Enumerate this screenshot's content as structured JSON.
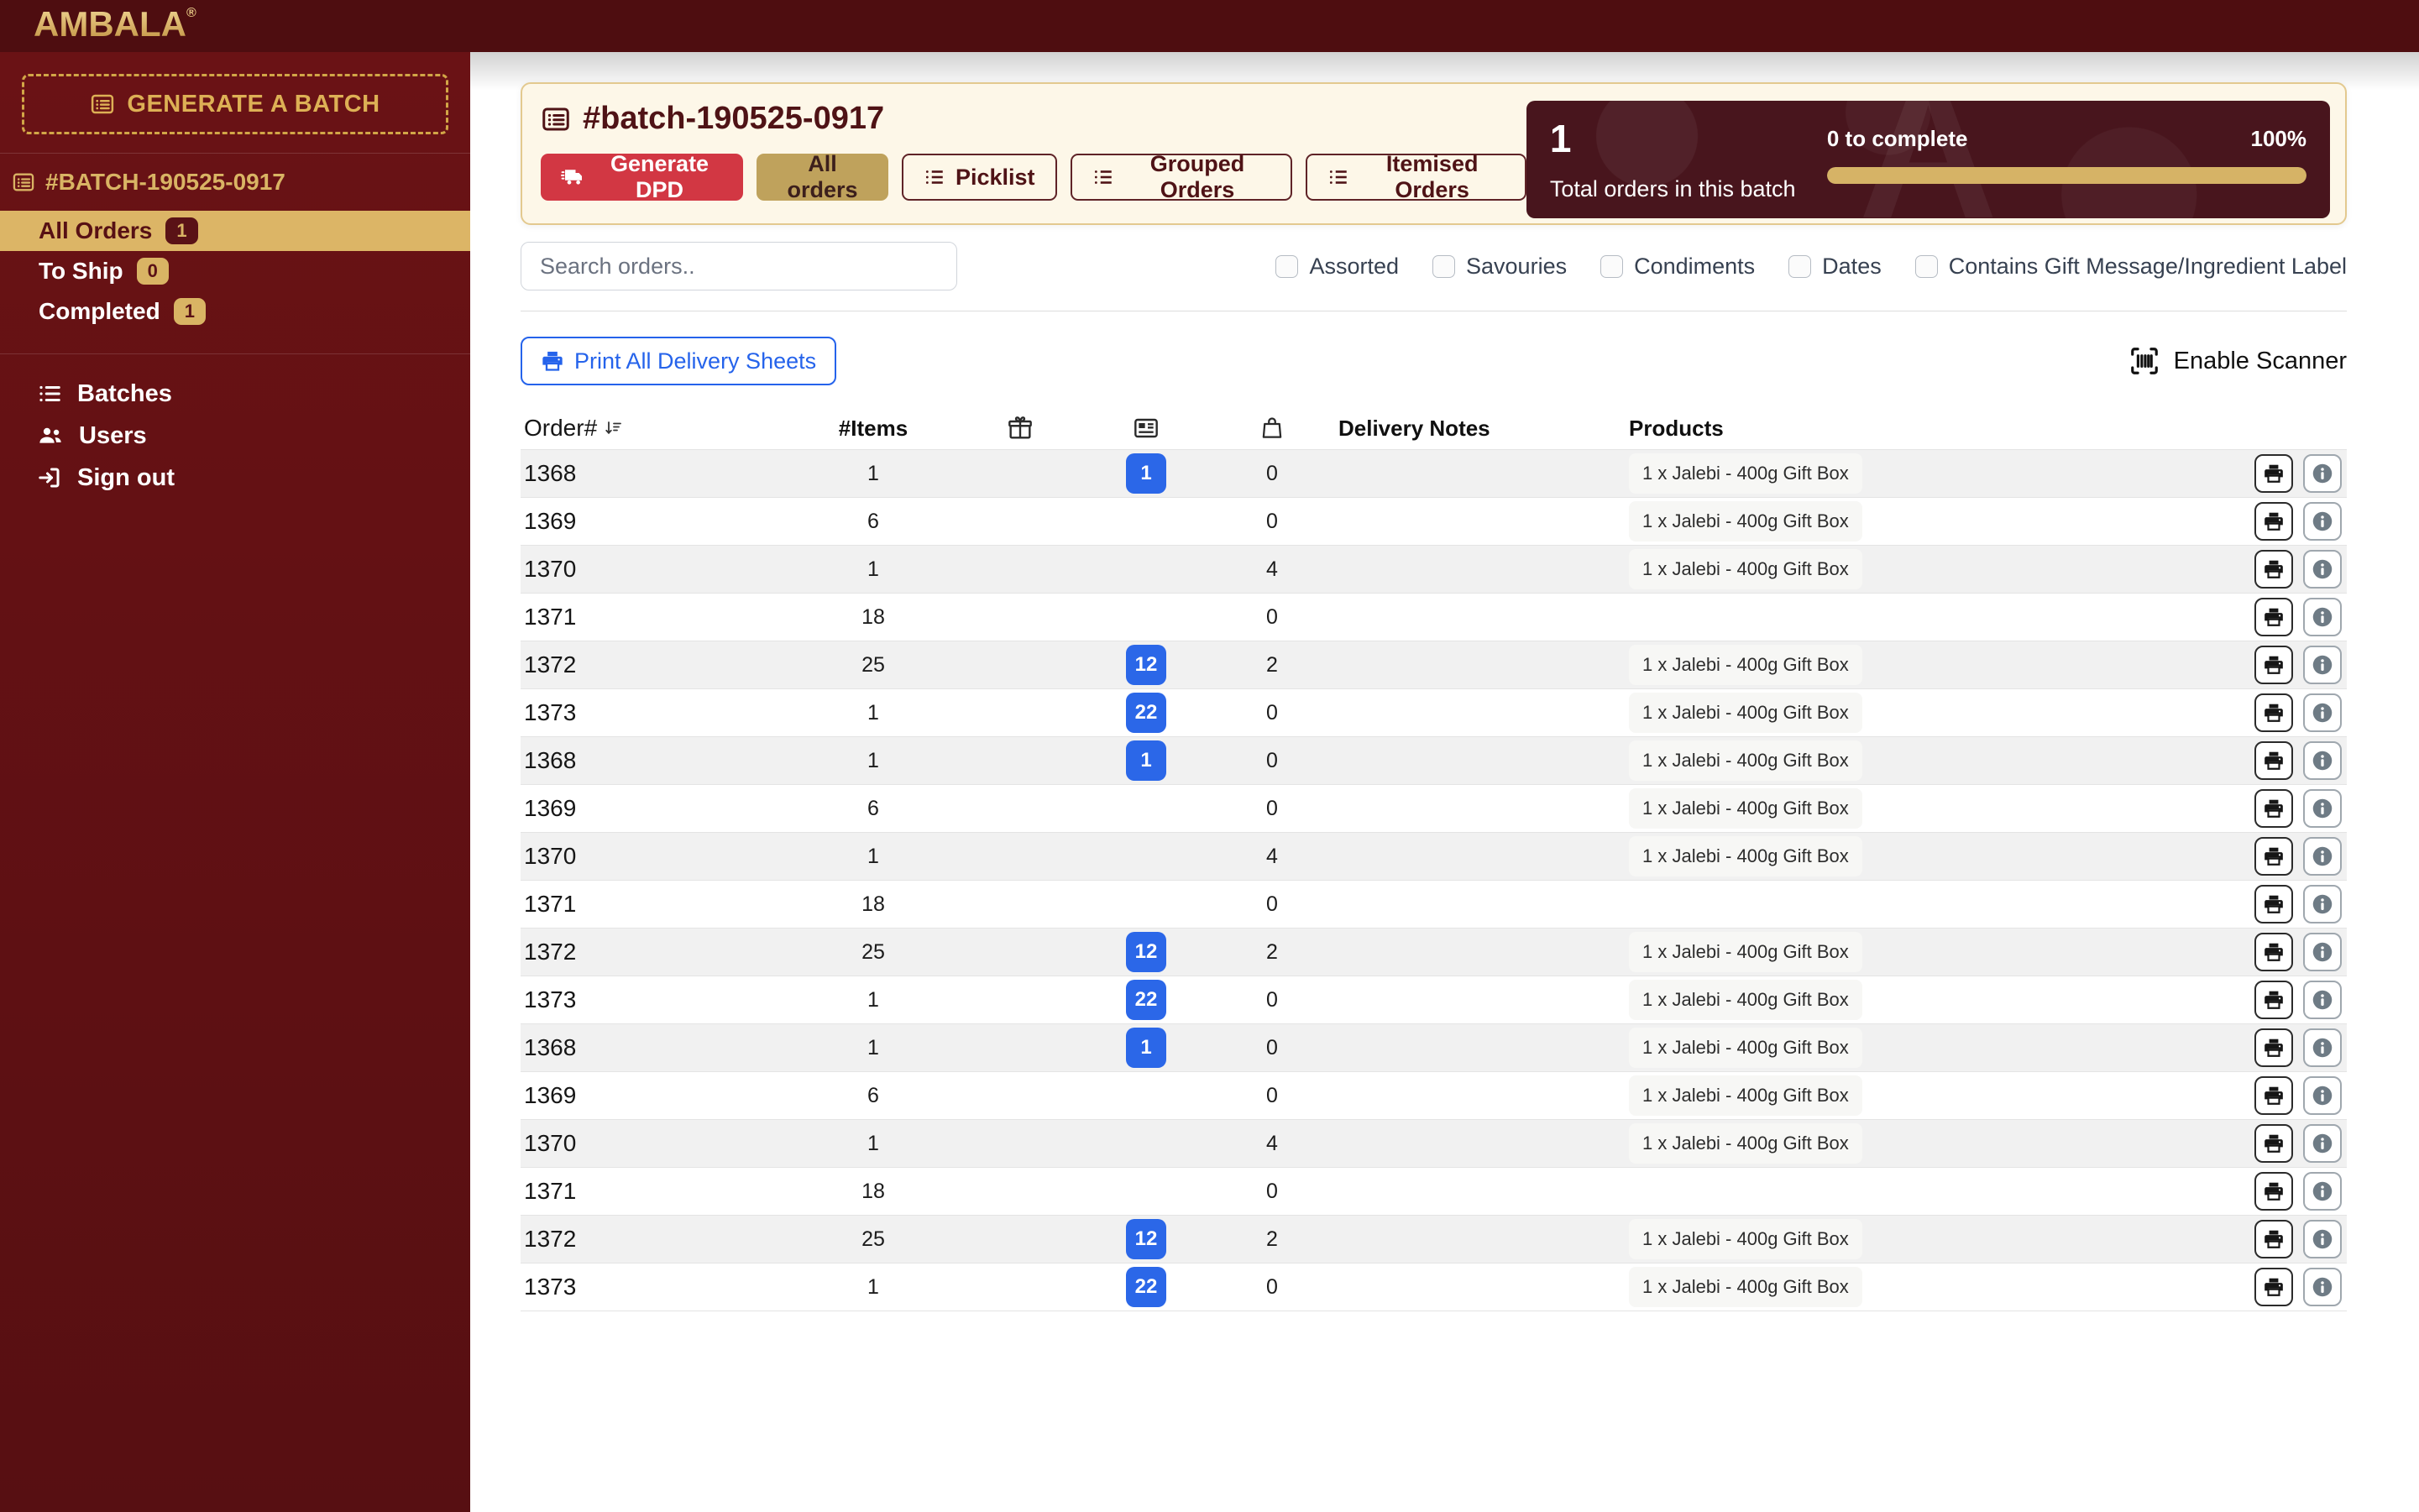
{
  "brand": {
    "logo_text": "AMBALA",
    "registered_mark": "®"
  },
  "sidebar": {
    "generate_batch_button": "GENERATE A BATCH",
    "batch_item": "#BATCH-190525-0917",
    "order_filters": [
      {
        "label": "All Orders",
        "count": "1",
        "active": true
      },
      {
        "label": "To Ship",
        "count": "0",
        "active": false
      },
      {
        "label": "Completed",
        "count": "1",
        "active": false
      }
    ],
    "nav_items": [
      {
        "label": "Batches",
        "icon": "list-icon"
      },
      {
        "label": "Users",
        "icon": "users-icon"
      },
      {
        "label": "Sign out",
        "icon": "sign-out-icon"
      }
    ]
  },
  "header": {
    "title": "#batch-190525-0917",
    "title_icon": "list-alt-icon",
    "actions": [
      {
        "label": "Generate DPD",
        "style": "danger",
        "icon": "truck-icon"
      },
      {
        "label": "All orders",
        "style": "gold",
        "icon": null
      },
      {
        "label": "Picklist",
        "style": "outline",
        "icon": "list-icon"
      },
      {
        "label": "Grouped Orders",
        "style": "outline",
        "icon": "list-icon"
      },
      {
        "label": "Itemised Orders",
        "style": "outline",
        "icon": "list-icon"
      }
    ],
    "stats": {
      "total_value": "1",
      "total_label": "Total orders in this batch",
      "to_complete_label": "0 to complete",
      "percent_label": "100%",
      "progress_percent": 100
    }
  },
  "toolbar": {
    "search_placeholder": "Search orders..",
    "filters": [
      "Assorted",
      "Savouries",
      "Condiments",
      "Dates",
      "Contains Gift Message/Ingredient Label"
    ],
    "print_all_label": "Print All Delivery Sheets",
    "enable_scanner_label": "Enable Scanner"
  },
  "table": {
    "headers": {
      "order": "Order#",
      "items": "#Items",
      "gift_icon": "gift-icon",
      "gift_card_icon": "gift-card-icon",
      "bag_icon": "bag-icon",
      "delivery_notes": "Delivery Notes",
      "products": "Products"
    },
    "rows": [
      {
        "order": "1368",
        "items": "1",
        "gift": "",
        "card_badge": "1",
        "bag": "0",
        "delivery_notes": "",
        "products": [
          "1 x Jalebi - 400g Gift Box"
        ]
      },
      {
        "order": "1369",
        "items": "6",
        "gift": "",
        "card_badge": null,
        "bag": "0",
        "delivery_notes": "",
        "products": [
          "1 x Jalebi - 400g Gift Box"
        ]
      },
      {
        "order": "1370",
        "items": "1",
        "gift": "",
        "card_badge": null,
        "bag": "4",
        "delivery_notes": "",
        "products": [
          "1 x Jalebi - 400g Gift Box"
        ]
      },
      {
        "order": "1371",
        "items": "18",
        "gift": "",
        "card_badge": null,
        "bag": "0",
        "delivery_notes": "",
        "products": []
      },
      {
        "order": "1372",
        "items": "25",
        "gift": "",
        "card_badge": "12",
        "bag": "2",
        "delivery_notes": "",
        "products": [
          "1 x Jalebi - 400g Gift Box"
        ]
      },
      {
        "order": "1373",
        "items": "1",
        "gift": "",
        "card_badge": "22",
        "bag": "0",
        "delivery_notes": "",
        "products": [
          "1 x Jalebi - 400g Gift Box"
        ]
      },
      {
        "order": "1368",
        "items": "1",
        "gift": "",
        "card_badge": "1",
        "bag": "0",
        "delivery_notes": "",
        "products": [
          "1 x Jalebi - 400g Gift Box"
        ]
      },
      {
        "order": "1369",
        "items": "6",
        "gift": "",
        "card_badge": null,
        "bag": "0",
        "delivery_notes": "",
        "products": [
          "1 x Jalebi - 400g Gift Box"
        ]
      },
      {
        "order": "1370",
        "items": "1",
        "gift": "",
        "card_badge": null,
        "bag": "4",
        "delivery_notes": "",
        "products": [
          "1 x Jalebi - 400g Gift Box"
        ]
      },
      {
        "order": "1371",
        "items": "18",
        "gift": "",
        "card_badge": null,
        "bag": "0",
        "delivery_notes": "",
        "products": []
      },
      {
        "order": "1372",
        "items": "25",
        "gift": "",
        "card_badge": "12",
        "bag": "2",
        "delivery_notes": "",
        "products": [
          "1 x Jalebi - 400g Gift Box"
        ]
      },
      {
        "order": "1373",
        "items": "1",
        "gift": "",
        "card_badge": "22",
        "bag": "0",
        "delivery_notes": "",
        "products": [
          "1 x Jalebi - 400g Gift Box"
        ]
      },
      {
        "order": "1368",
        "items": "1",
        "gift": "",
        "card_badge": "1",
        "bag": "0",
        "delivery_notes": "",
        "products": [
          "1 x Jalebi - 400g Gift Box"
        ]
      },
      {
        "order": "1369",
        "items": "6",
        "gift": "",
        "card_badge": null,
        "bag": "0",
        "delivery_notes": "",
        "products": [
          "1 x Jalebi - 400g Gift Box"
        ]
      },
      {
        "order": "1370",
        "items": "1",
        "gift": "",
        "card_badge": null,
        "bag": "4",
        "delivery_notes": "",
        "products": [
          "1 x Jalebi - 400g Gift Box"
        ]
      },
      {
        "order": "1371",
        "items": "18",
        "gift": "",
        "card_badge": null,
        "bag": "0",
        "delivery_notes": "",
        "products": []
      },
      {
        "order": "1372",
        "items": "25",
        "gift": "",
        "card_badge": "12",
        "bag": "2",
        "delivery_notes": "",
        "products": [
          "1 x Jalebi - 400g Gift Box"
        ]
      },
      {
        "order": "1373",
        "items": "1",
        "gift": "",
        "card_badge": "22",
        "bag": "0",
        "delivery_notes": "",
        "products": [
          "1 x Jalebi - 400g Gift Box"
        ]
      }
    ]
  },
  "colors": {
    "maroon_dark": "#4e0d10",
    "maroon_sidebar": "#6a1215",
    "gold": "#d9b464",
    "active_gold": "#dcb566",
    "cream_card": "#fdf7e8",
    "red_button": "#d23743",
    "blue": "#2563eb",
    "badge_blue": "#2b67e8",
    "stats_maroon": "#48151d"
  }
}
